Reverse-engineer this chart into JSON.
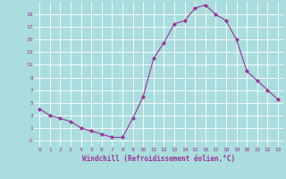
{
  "x": [
    0,
    1,
    2,
    3,
    4,
    5,
    6,
    7,
    8,
    9,
    10,
    11,
    12,
    13,
    14,
    15,
    16,
    17,
    18,
    19,
    20,
    21,
    22,
    23
  ],
  "y": [
    4,
    3,
    2.5,
    2,
    1,
    0.5,
    0,
    -0.5,
    -0.5,
    2.5,
    6,
    12,
    14.5,
    17.5,
    18,
    20,
    20.5,
    19,
    18,
    15,
    10,
    8.5,
    7,
    5.5
  ],
  "line_color": "#993399",
  "marker": "D",
  "marker_size": 2,
  "bg_color": "#aadddd",
  "grid_color": "#ffffff",
  "xlabel": "Windchill (Refroidissement éolien,°C)",
  "xlabel_color": "#993399",
  "tick_color": "#993399",
  "ylim": [
    -2,
    21
  ],
  "xlim": [
    -0.5,
    23.5
  ],
  "yticks": [
    -1,
    1,
    3,
    5,
    7,
    9,
    11,
    13,
    15,
    17,
    19
  ],
  "xticks": [
    0,
    1,
    2,
    3,
    4,
    5,
    6,
    7,
    8,
    9,
    10,
    11,
    12,
    13,
    14,
    15,
    16,
    17,
    18,
    19,
    20,
    21,
    22,
    23
  ]
}
